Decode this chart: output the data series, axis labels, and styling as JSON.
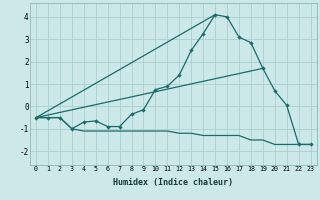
{
  "xlabel": "Humidex (Indice chaleur)",
  "bg_color": "#cce8e8",
  "grid_color": "#aad0d0",
  "line_color": "#1a6b6b",
  "xlim": [
    -0.5,
    23.5
  ],
  "ylim": [
    -2.6,
    4.6
  ],
  "yticks": [
    -2,
    -1,
    0,
    1,
    2,
    3,
    4
  ],
  "xticks": [
    0,
    1,
    2,
    3,
    4,
    5,
    6,
    7,
    8,
    9,
    10,
    11,
    12,
    13,
    14,
    15,
    16,
    17,
    18,
    19,
    20,
    21,
    22,
    23
  ],
  "series1_x": [
    0,
    1,
    2,
    3,
    4,
    5,
    6,
    7,
    8,
    9,
    10,
    11,
    12,
    13,
    14,
    15,
    16,
    17,
    18,
    19,
    20,
    21,
    22,
    23
  ],
  "series1_y": [
    -0.5,
    -0.5,
    -0.5,
    -1.0,
    -0.7,
    -0.65,
    -0.9,
    -0.9,
    -0.35,
    -0.15,
    0.75,
    0.9,
    1.4,
    2.5,
    3.25,
    4.1,
    4.0,
    3.1,
    2.85,
    1.7,
    0.7,
    0.05,
    -1.7,
    -1.7
  ],
  "series2_x": [
    0,
    15
  ],
  "series2_y": [
    -0.5,
    4.1
  ],
  "series3_x": [
    0,
    19
  ],
  "series3_y": [
    -0.5,
    1.7
  ],
  "series4_x": [
    0,
    1,
    2,
    3,
    4,
    5,
    6,
    7,
    8,
    9,
    10,
    11,
    12,
    13,
    14,
    15,
    16,
    17,
    18,
    19,
    20,
    21,
    22,
    23
  ],
  "series4_y": [
    -0.5,
    -0.5,
    -0.5,
    -1.0,
    -1.1,
    -1.1,
    -1.1,
    -1.1,
    -1.1,
    -1.1,
    -1.1,
    -1.1,
    -1.2,
    -1.2,
    -1.3,
    -1.3,
    -1.3,
    -1.3,
    -1.5,
    -1.5,
    -1.7,
    -1.7,
    -1.7,
    -1.7
  ]
}
